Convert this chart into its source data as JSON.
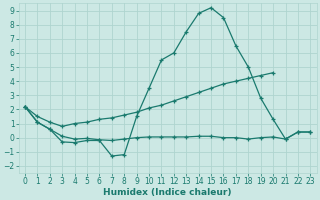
{
  "xlabel": "Humidex (Indice chaleur)",
  "x": [
    0,
    1,
    2,
    3,
    4,
    5,
    6,
    7,
    8,
    9,
    10,
    11,
    12,
    13,
    14,
    15,
    16,
    17,
    18,
    19,
    20,
    21,
    22,
    23
  ],
  "main_y": [
    2.2,
    1.1,
    0.6,
    -0.3,
    -0.35,
    -0.2,
    -0.2,
    -1.3,
    -1.2,
    1.5,
    3.5,
    5.5,
    6.0,
    7.5,
    8.8,
    9.2,
    8.5,
    6.5,
    5.0,
    2.8,
    1.3,
    -0.1,
    0.4,
    0.4
  ],
  "rising_y": [
    2.2,
    1.5,
    1.1,
    0.8,
    1.0,
    1.1,
    1.3,
    1.4,
    1.6,
    1.8,
    2.1,
    2.3,
    2.6,
    2.9,
    3.2,
    3.5,
    3.8,
    4.0,
    4.2,
    4.4,
    4.6,
    null,
    null,
    null
  ],
  "flat_y": [
    2.2,
    1.1,
    0.6,
    0.1,
    -0.1,
    -0.05,
    -0.15,
    -0.2,
    -0.1,
    0.0,
    0.05,
    0.05,
    0.05,
    0.05,
    0.1,
    0.1,
    0.0,
    0.0,
    -0.1,
    0.0,
    0.05,
    -0.1,
    0.4,
    0.4
  ],
  "color": "#1a7a6e",
  "bg_color": "#cce8e4",
  "grid_color": "#afd4cf",
  "xlim": [
    -0.5,
    23.5
  ],
  "ylim": [
    -2.5,
    9.5
  ],
  "yticks": [
    -2,
    -1,
    0,
    1,
    2,
    3,
    4,
    5,
    6,
    7,
    8,
    9
  ],
  "xticks": [
    0,
    1,
    2,
    3,
    4,
    5,
    6,
    7,
    8,
    9,
    10,
    11,
    12,
    13,
    14,
    15,
    16,
    17,
    18,
    19,
    20,
    21,
    22,
    23
  ]
}
